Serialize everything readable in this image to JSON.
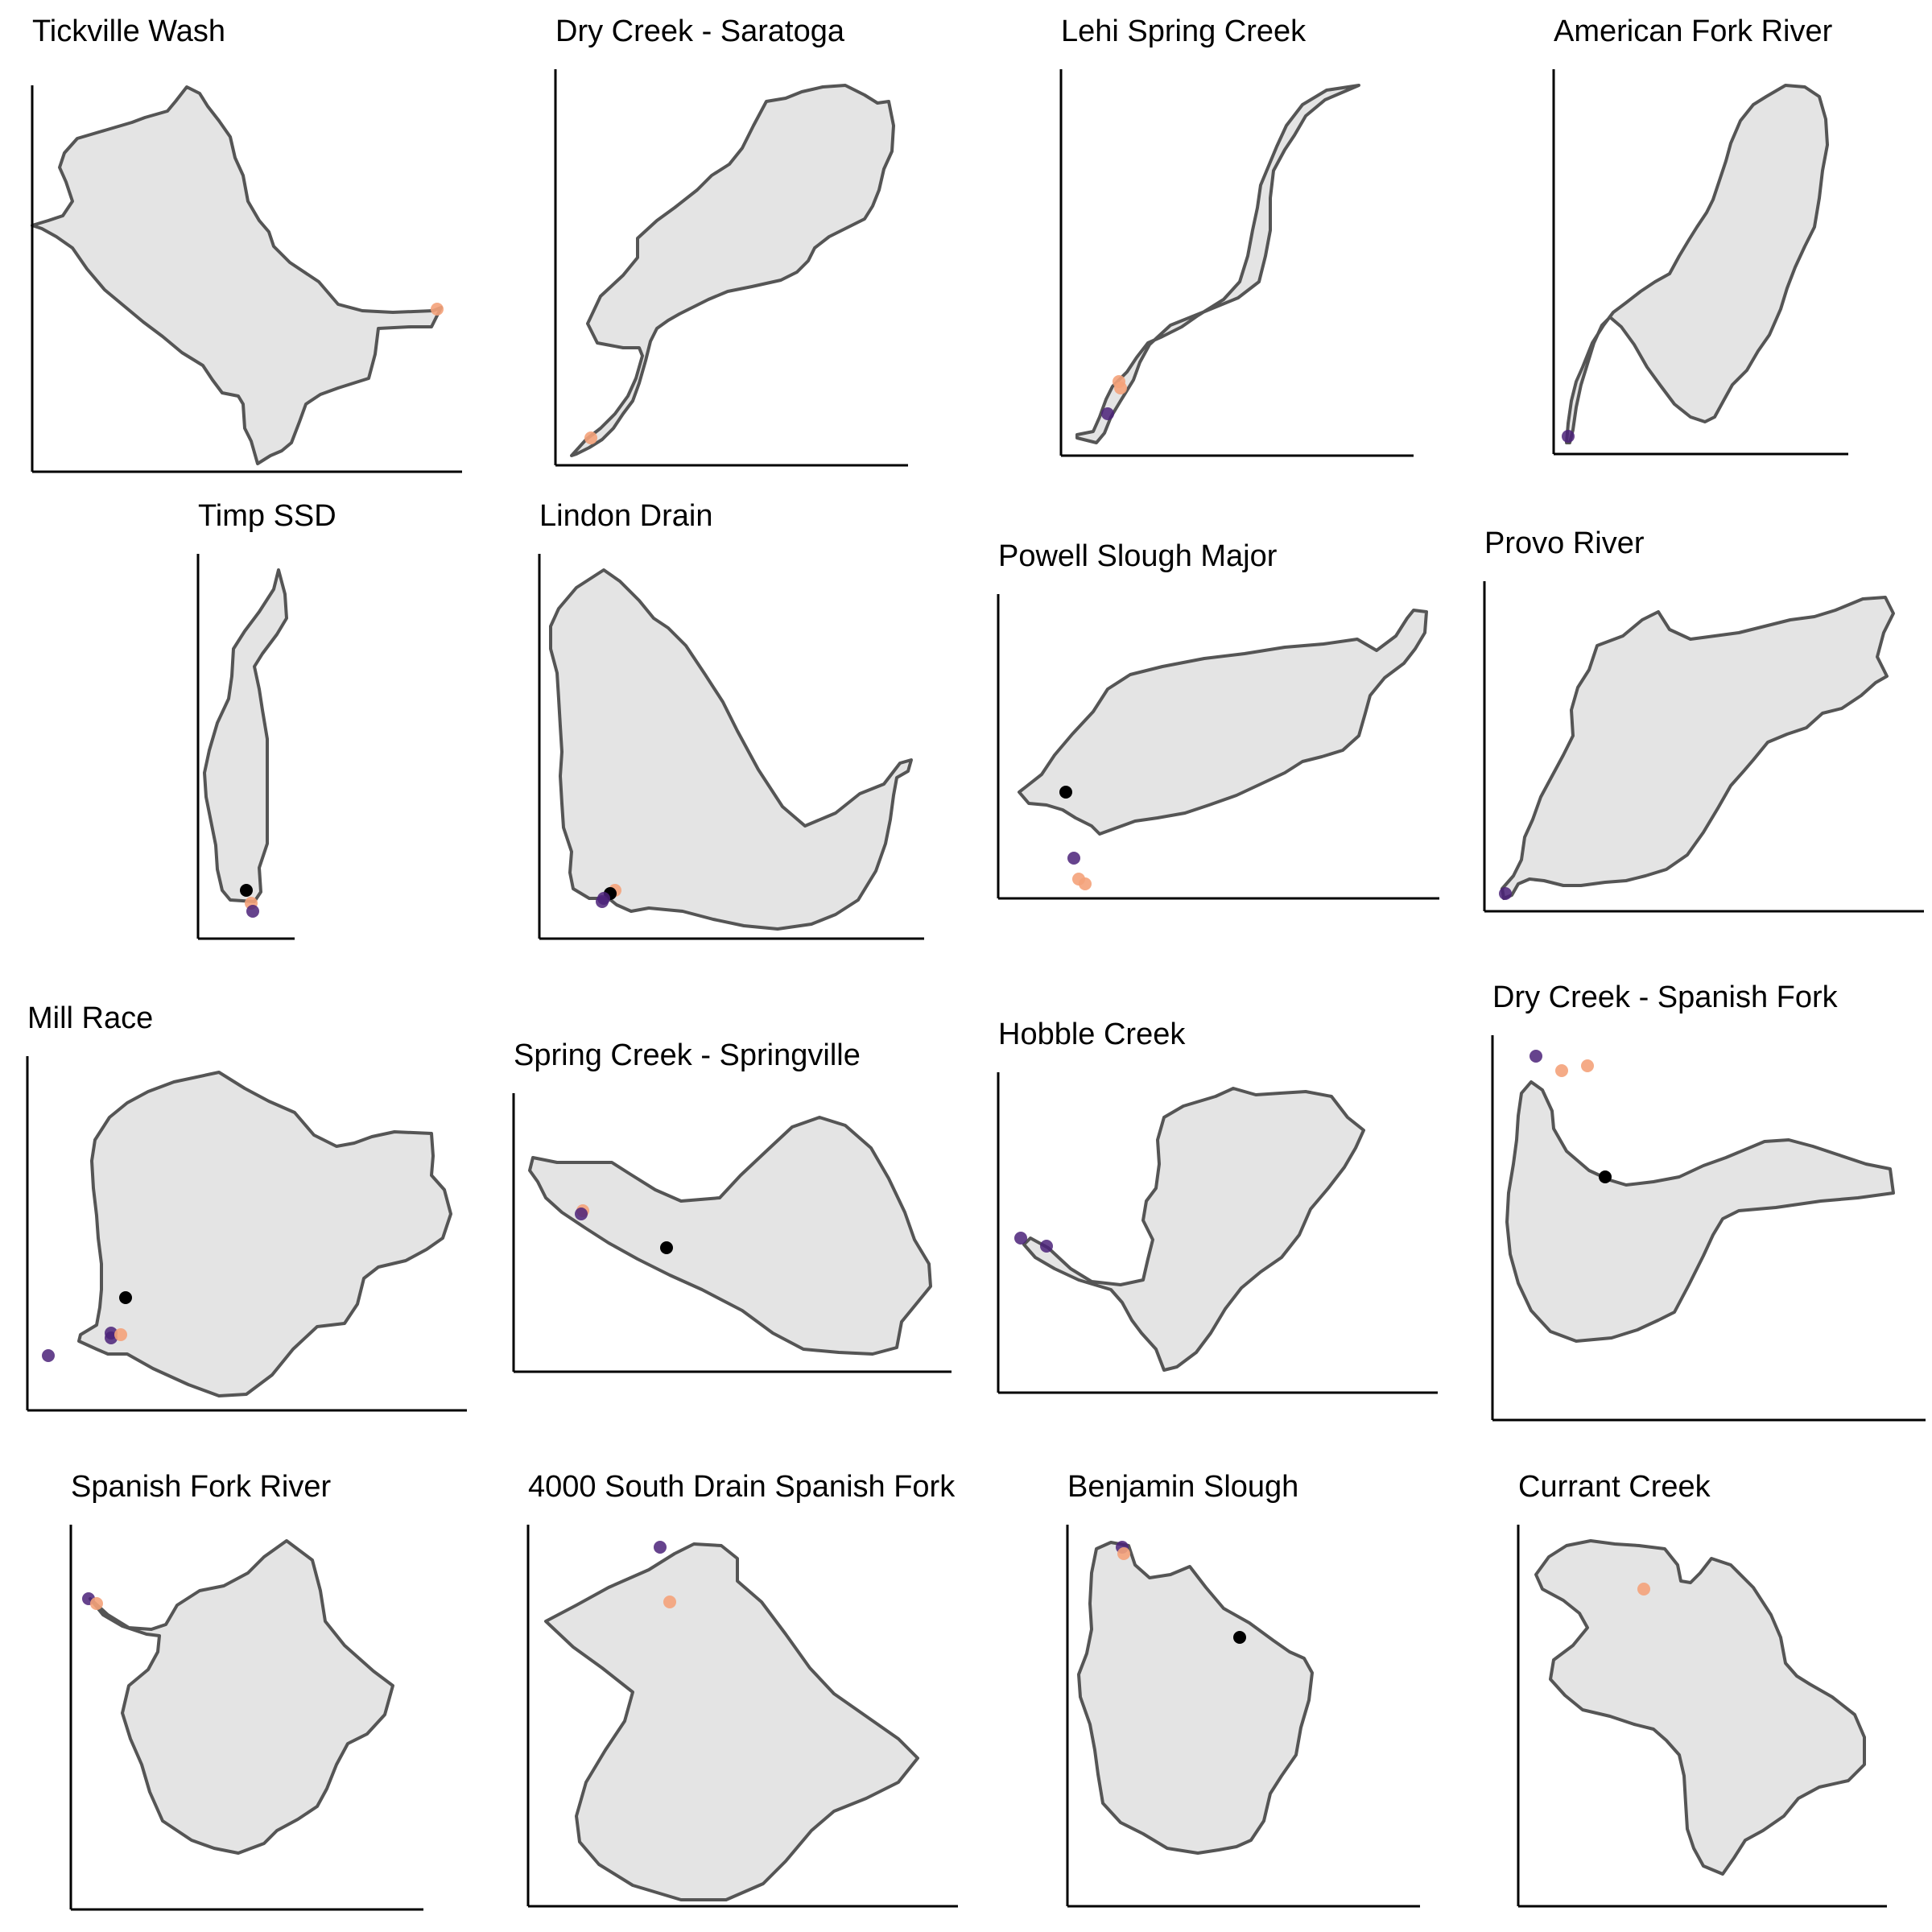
{
  "colors": {
    "watershed_fill": "#e4e4e4",
    "watershed_stroke": "#555555",
    "axis": "#000000",
    "point_orange": "#f4a27a",
    "point_purple": "#4b2279",
    "point_black": "#000000"
  },
  "panels": [
    {
      "name": "Tickville Wash",
      "points": [
        {
          "color": "orange",
          "count": 1
        }
      ]
    },
    {
      "name": "Dry Creek - Saratoga",
      "points": [
        {
          "color": "orange",
          "count": 1
        }
      ]
    },
    {
      "name": "Lehi Spring Creek",
      "points": [
        {
          "color": "orange",
          "count": 2
        },
        {
          "color": "purple",
          "count": 1
        }
      ]
    },
    {
      "name": "American Fork River",
      "points": [
        {
          "color": "purple",
          "count": 1
        }
      ]
    },
    {
      "name": "Timp SSD",
      "points": [
        {
          "color": "black",
          "count": 1
        },
        {
          "color": "orange",
          "count": 1
        },
        {
          "color": "purple",
          "count": 1
        }
      ]
    },
    {
      "name": "Lindon Drain",
      "points": [
        {
          "color": "black",
          "count": 1
        },
        {
          "color": "orange",
          "count": 1
        },
        {
          "color": "purple",
          "count": 2
        }
      ]
    },
    {
      "name": "Powell Slough Major",
      "points": [
        {
          "color": "black",
          "count": 1
        },
        {
          "color": "purple",
          "count": 1
        },
        {
          "color": "orange",
          "count": 2
        }
      ]
    },
    {
      "name": "Provo River",
      "points": [
        {
          "color": "purple",
          "count": 1
        }
      ]
    },
    {
      "name": "Mill Race",
      "points": [
        {
          "color": "black",
          "count": 1
        },
        {
          "color": "purple",
          "count": 3
        },
        {
          "color": "orange",
          "count": 1
        }
      ]
    },
    {
      "name": "Spring Creek - Springville",
      "points": [
        {
          "color": "black",
          "count": 1
        },
        {
          "color": "purple",
          "count": 1
        },
        {
          "color": "orange",
          "count": 1
        }
      ]
    },
    {
      "name": "Hobble Creek",
      "points": [
        {
          "color": "purple",
          "count": 2
        }
      ]
    },
    {
      "name": "Dry Creek - Spanish Fork",
      "points": [
        {
          "color": "black",
          "count": 1
        },
        {
          "color": "purple",
          "count": 1
        },
        {
          "color": "orange",
          "count": 2
        }
      ]
    },
    {
      "name": "Spanish Fork River",
      "points": [
        {
          "color": "purple",
          "count": 1
        },
        {
          "color": "orange",
          "count": 1
        }
      ]
    },
    {
      "name": "4000 South Drain Spanish Fork",
      "points": [
        {
          "color": "purple",
          "count": 1
        },
        {
          "color": "orange",
          "count": 1
        }
      ]
    },
    {
      "name": "Benjamin Slough",
      "points": [
        {
          "color": "black",
          "count": 1
        },
        {
          "color": "purple",
          "count": 1
        },
        {
          "color": "orange",
          "count": 1
        }
      ]
    },
    {
      "name": "Currant Creek",
      "points": [
        {
          "color": "orange",
          "count": 1
        }
      ]
    }
  ]
}
